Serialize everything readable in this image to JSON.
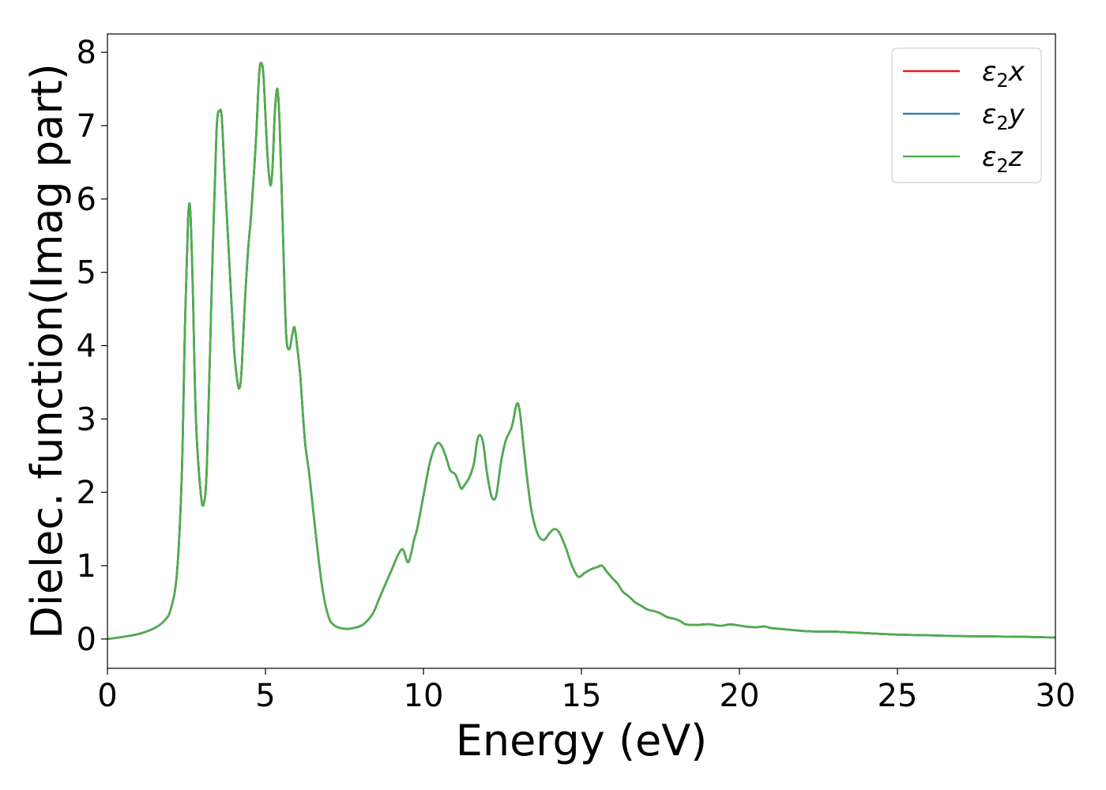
{
  "chart_data": {
    "type": "line",
    "title": "",
    "xlabel": "Energy (eV)",
    "ylabel": "Dielec. function(Imag part)",
    "xlim": [
      0,
      30
    ],
    "ylim": [
      -0.4,
      8.25
    ],
    "x_ticks": [
      "0",
      "5",
      "10",
      "15",
      "20",
      "25",
      "30"
    ],
    "y_ticks": [
      "0",
      "1",
      "2",
      "3",
      "4",
      "5",
      "6",
      "7",
      "8"
    ],
    "grid": false,
    "legend_position": "top-right",
    "series": [
      {
        "name": "ε2x",
        "legend_main": "ε",
        "legend_sub": "2",
        "legend_tail": "x",
        "color": "#e41a1c"
      },
      {
        "name": "ε2y",
        "legend_main": "ε",
        "legend_sub": "2",
        "legend_tail": "y",
        "color": "#377eb8"
      },
      {
        "name": "ε2z",
        "legend_main": "ε",
        "legend_sub": "2",
        "legend_tail": "z",
        "color": "#4daf4a"
      }
    ],
    "x": [
      0,
      0.5,
      1.0,
      1.5,
      1.8,
      2.0,
      2.2,
      2.35,
      2.45,
      2.55,
      2.62,
      2.7,
      2.8,
      2.95,
      3.05,
      3.15,
      3.3,
      3.45,
      3.55,
      3.62,
      3.7,
      3.85,
      4.0,
      4.1,
      4.18,
      4.25,
      4.35,
      4.45,
      4.55,
      4.7,
      4.8,
      4.88,
      4.95,
      5.05,
      5.15,
      5.22,
      5.3,
      5.38,
      5.45,
      5.55,
      5.65,
      5.75,
      5.85,
      5.92,
      6.0,
      6.1,
      6.25,
      6.4,
      6.6,
      6.8,
      7.0,
      7.2,
      7.5,
      7.8,
      8.1,
      8.4,
      8.6,
      8.8,
      9.0,
      9.2,
      9.35,
      9.5,
      9.6,
      9.7,
      9.8,
      10.0,
      10.2,
      10.4,
      10.55,
      10.7,
      10.85,
      11.0,
      11.1,
      11.2,
      11.3,
      11.45,
      11.6,
      11.7,
      11.8,
      11.9,
      12.0,
      12.15,
      12.3,
      12.45,
      12.6,
      12.8,
      12.95,
      13.05,
      13.2,
      13.4,
      13.6,
      13.8,
      14.0,
      14.15,
      14.3,
      14.5,
      14.7,
      14.9,
      15.1,
      15.3,
      15.5,
      15.65,
      15.8,
      16.0,
      16.15,
      16.3,
      16.5,
      16.7,
      16.9,
      17.1,
      17.3,
      17.5,
      17.7,
      17.9,
      18.1,
      18.3,
      18.6,
      18.9,
      19.1,
      19.4,
      19.7,
      19.9,
      20.2,
      20.5,
      20.8,
      21.0,
      21.5,
      22.0,
      22.5,
      23.0,
      23.5,
      24.0,
      24.5,
      25.0,
      25.5,
      26.0,
      27.0,
      28.0,
      29.0,
      30.0
    ],
    "y": [
      0.0,
      0.03,
      0.07,
      0.15,
      0.25,
      0.4,
      0.9,
      2.2,
      4.2,
      5.7,
      5.85,
      4.8,
      3.0,
      2.0,
      1.85,
      2.4,
      4.8,
      6.9,
      7.2,
      7.1,
      6.4,
      5.2,
      4.0,
      3.55,
      3.42,
      3.7,
      4.6,
      5.3,
      5.8,
      6.8,
      7.7,
      7.85,
      7.6,
      6.7,
      6.2,
      6.4,
      7.2,
      7.5,
      7.0,
      5.6,
      4.2,
      3.95,
      4.15,
      4.25,
      4.0,
      3.6,
      2.7,
      2.2,
      1.4,
      0.7,
      0.3,
      0.18,
      0.14,
      0.15,
      0.2,
      0.35,
      0.55,
      0.75,
      0.95,
      1.15,
      1.22,
      1.05,
      1.15,
      1.35,
      1.5,
      1.95,
      2.4,
      2.65,
      2.65,
      2.5,
      2.3,
      2.25,
      2.15,
      2.05,
      2.1,
      2.2,
      2.4,
      2.7,
      2.78,
      2.65,
      2.3,
      1.95,
      1.95,
      2.4,
      2.7,
      2.9,
      3.2,
      3.1,
      2.5,
      1.8,
      1.45,
      1.35,
      1.45,
      1.5,
      1.45,
      1.25,
      1.0,
      0.85,
      0.9,
      0.95,
      0.98,
      1.0,
      0.92,
      0.82,
      0.75,
      0.65,
      0.58,
      0.5,
      0.45,
      0.4,
      0.38,
      0.35,
      0.3,
      0.28,
      0.25,
      0.2,
      0.19,
      0.2,
      0.2,
      0.18,
      0.2,
      0.19,
      0.17,
      0.16,
      0.17,
      0.15,
      0.13,
      0.11,
      0.1,
      0.1,
      0.09,
      0.08,
      0.07,
      0.06,
      0.055,
      0.05,
      0.04,
      0.035,
      0.03,
      0.02
    ]
  }
}
